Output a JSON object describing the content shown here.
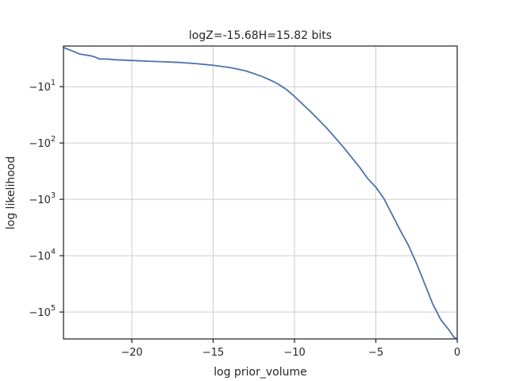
{
  "chart_data": {
    "type": "line",
    "title": "logZ=-15.68H=15.82 bits",
    "xlabel": "log prior_volume",
    "ylabel": "log likelihood",
    "xlim": [
      -24.2,
      0
    ],
    "yscale": "symlog",
    "ylim": [
      -300000,
      -1.9
    ],
    "grid": true,
    "x_ticks": [
      {
        "value": -20,
        "label": "−20"
      },
      {
        "value": -15,
        "label": "−15"
      },
      {
        "value": -10,
        "label": "−10"
      },
      {
        "value": -5,
        "label": "−5"
      },
      {
        "value": 0,
        "label": "0"
      }
    ],
    "y_ticks": [
      {
        "value": -10,
        "label": "−10",
        "exp": "1"
      },
      {
        "value": -100,
        "label": "−10",
        "exp": "2"
      },
      {
        "value": -1000,
        "label": "−10",
        "exp": "3"
      },
      {
        "value": -10000,
        "label": "−10",
        "exp": "4"
      },
      {
        "value": -100000,
        "label": "−10",
        "exp": "5"
      }
    ],
    "series": [
      {
        "color": "#4c72b0",
        "x": [
          -24.2,
          -23.5,
          -23.2,
          -22.6,
          -22.3,
          -22.0,
          -21.5,
          -21.0,
          -20.0,
          -19.0,
          -18.0,
          -17.0,
          -16.0,
          -15.0,
          -14.0,
          -13.0,
          -12.0,
          -11.5,
          -11.0,
          -10.5,
          -10.0,
          -9.0,
          -8.0,
          -7.0,
          -6.0,
          -5.5,
          -5.0,
          -4.5,
          -4.0,
          -3.5,
          -3.0,
          -2.5,
          -2.0,
          -1.5,
          -1.0,
          -0.5,
          -0.2,
          0.0
        ],
        "y": [
          -2.02,
          -2.42,
          -2.64,
          -2.81,
          -2.95,
          -3.22,
          -3.24,
          -3.33,
          -3.43,
          -3.53,
          -3.62,
          -3.72,
          -3.91,
          -4.17,
          -4.56,
          -5.24,
          -6.58,
          -7.6,
          -9.0,
          -11.2,
          -14.9,
          -28,
          -55,
          -118,
          -269,
          -427,
          -608,
          -973,
          -1860,
          -3560,
          -6510,
          -13700,
          -31400,
          -72500,
          -138000,
          -209000,
          -280000,
          -300000
        ]
      }
    ]
  }
}
